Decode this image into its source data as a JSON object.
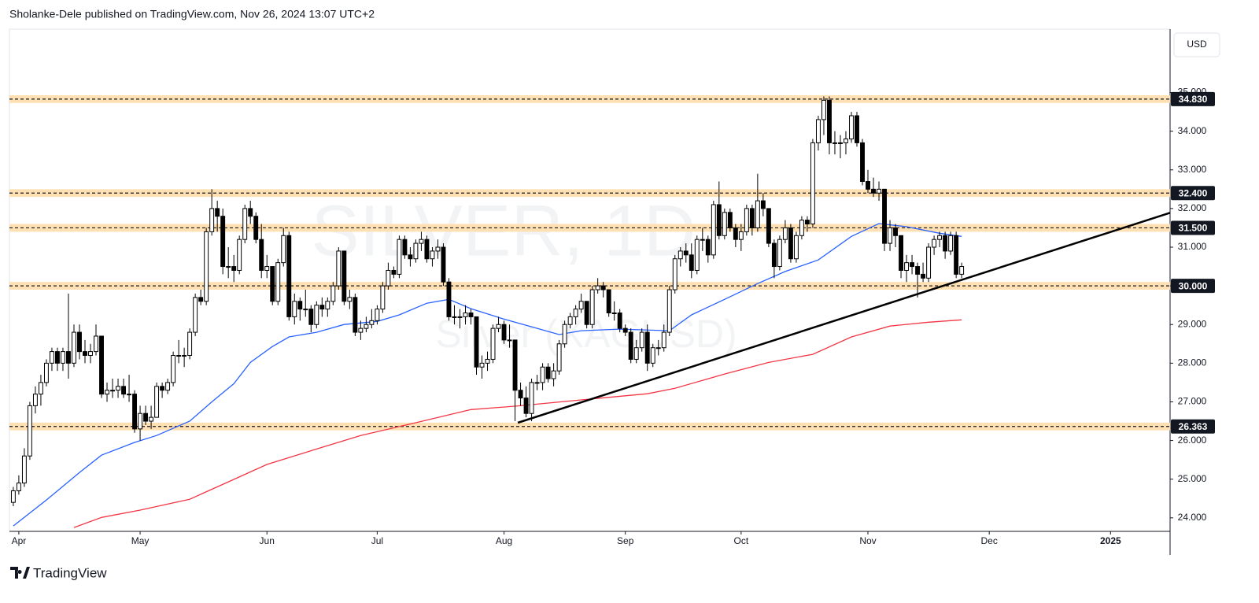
{
  "header": "Sholanke-Dele published on TradingView.com, Nov 26, 2024 13:07 UTC+2",
  "footer": "TradingView",
  "chart_data": {
    "type": "candlestick",
    "currency": "USD",
    "watermark": "SILVER, 1D",
    "watermark_subtitle": "Silver (XAGUSD)",
    "xlim": [
      -0.7,
      209.8
    ],
    "xticks": [
      {
        "value": 1,
        "label": "Apr"
      },
      {
        "value": 23,
        "label": "May"
      },
      {
        "value": 46,
        "label": "Jun"
      },
      {
        "value": 66,
        "label": "Jul"
      },
      {
        "value": 89,
        "label": "Aug"
      },
      {
        "value": 111,
        "label": "Sep"
      },
      {
        "value": 132,
        "label": "Oct"
      },
      {
        "value": 155,
        "label": "Nov"
      },
      {
        "value": 177,
        "label": "Dec"
      },
      {
        "value": 199,
        "label": "2025"
      }
    ],
    "ylim": [
      23.65,
      36.64
    ],
    "yticks": [
      {
        "value": 24,
        "label": "24.000"
      },
      {
        "value": 25,
        "label": "25.000"
      },
      {
        "value": 26,
        "label": "26.000"
      },
      {
        "value": 27,
        "label": "27.000"
      },
      {
        "value": 28,
        "label": "28.000"
      },
      {
        "value": 29,
        "label": "29.000"
      },
      {
        "value": 30,
        "label": "30.000"
      },
      {
        "value": 31,
        "label": "31.000"
      },
      {
        "value": 32,
        "label": "32.000"
      },
      {
        "value": 33,
        "label": "33.000"
      },
      {
        "value": 34,
        "label": "34.000"
      },
      {
        "value": 35,
        "label": "35.000"
      }
    ],
    "up_color": "#ffffff",
    "down_color": "#000000",
    "candles": [
      [
        24.4,
        24.8,
        24.3,
        24.7
      ],
      [
        24.7,
        25.1,
        24.6,
        24.9
      ],
      [
        24.9,
        25.8,
        24.8,
        25.6
      ],
      [
        25.6,
        27.0,
        25.5,
        26.9
      ],
      [
        26.9,
        27.4,
        26.7,
        27.2
      ],
      [
        27.2,
        27.7,
        26.9,
        27.5
      ],
      [
        27.5,
        28.1,
        27.4,
        28.0
      ],
      [
        28.0,
        28.4,
        27.8,
        28.3
      ],
      [
        28.3,
        28.4,
        27.8,
        28.0
      ],
      [
        28.0,
        28.4,
        27.8,
        28.3
      ],
      [
        28.3,
        29.8,
        27.6,
        28.0
      ],
      [
        28.0,
        29.0,
        27.9,
        28.8
      ],
      [
        28.8,
        29.0,
        28.1,
        28.3
      ],
      [
        28.3,
        28.6,
        28.0,
        28.2
      ],
      [
        28.2,
        28.5,
        28.0,
        28.3
      ],
      [
        28.3,
        29.0,
        28.2,
        28.7
      ],
      [
        28.7,
        28.7,
        27.1,
        27.2
      ],
      [
        27.2,
        27.5,
        27.0,
        27.3
      ],
      [
        27.3,
        27.6,
        27.1,
        27.3
      ],
      [
        27.3,
        27.6,
        27.1,
        27.4
      ],
      [
        27.4,
        27.6,
        27.1,
        27.2
      ],
      [
        27.2,
        27.7,
        27.0,
        27.2
      ],
      [
        27.2,
        27.3,
        26.2,
        26.3
      ],
      [
        26.3,
        26.9,
        26.0,
        26.7
      ],
      [
        26.7,
        26.9,
        26.4,
        26.5
      ],
      [
        26.5,
        26.9,
        26.3,
        26.6
      ],
      [
        26.6,
        27.5,
        26.6,
        27.4
      ],
      [
        27.4,
        27.5,
        27.1,
        27.3
      ],
      [
        27.3,
        27.6,
        27.2,
        27.5
      ],
      [
        27.5,
        28.3,
        27.4,
        28.2
      ],
      [
        28.2,
        28.6,
        28.0,
        28.2
      ],
      [
        28.2,
        28.4,
        27.9,
        28.2
      ],
      [
        28.2,
        28.9,
        28.1,
        28.8
      ],
      [
        28.8,
        29.8,
        28.7,
        29.7
      ],
      [
        29.7,
        29.9,
        29.5,
        29.6
      ],
      [
        29.6,
        31.5,
        29.5,
        31.4
      ],
      [
        31.4,
        32.5,
        31.3,
        32.0
      ],
      [
        32.0,
        32.2,
        31.4,
        31.8
      ],
      [
        31.8,
        32.0,
        30.3,
        30.5
      ],
      [
        30.5,
        31.0,
        30.2,
        30.5
      ],
      [
        30.5,
        30.8,
        30.1,
        30.4
      ],
      [
        30.4,
        31.3,
        30.3,
        31.2
      ],
      [
        31.2,
        32.1,
        31.1,
        32.0
      ],
      [
        32.0,
        32.2,
        31.6,
        31.8
      ],
      [
        31.8,
        31.9,
        31.1,
        31.2
      ],
      [
        31.2,
        31.6,
        30.2,
        30.4
      ],
      [
        30.4,
        30.8,
        30.2,
        30.5
      ],
      [
        30.5,
        30.5,
        29.5,
        29.6
      ],
      [
        29.6,
        30.7,
        29.5,
        30.6
      ],
      [
        30.6,
        31.5,
        30.5,
        31.3
      ],
      [
        31.3,
        31.4,
        29.1,
        29.2
      ],
      [
        29.2,
        29.8,
        29.0,
        29.6
      ],
      [
        29.6,
        29.7,
        29.1,
        29.4
      ],
      [
        29.4,
        29.9,
        29.2,
        29.4
      ],
      [
        29.4,
        29.5,
        28.8,
        29.0
      ],
      [
        29.0,
        29.6,
        28.9,
        29.5
      ],
      [
        29.5,
        29.7,
        29.2,
        29.4
      ],
      [
        29.4,
        29.7,
        29.2,
        29.6
      ],
      [
        29.6,
        30.1,
        29.5,
        30.0
      ],
      [
        30.0,
        31.0,
        29.9,
        30.9
      ],
      [
        30.9,
        30.9,
        29.5,
        29.6
      ],
      [
        29.6,
        29.9,
        29.4,
        29.7
      ],
      [
        29.7,
        29.8,
        28.7,
        28.8
      ],
      [
        28.8,
        29.1,
        28.6,
        28.9
      ],
      [
        28.9,
        29.2,
        28.8,
        29.0
      ],
      [
        29.0,
        29.4,
        28.9,
        29.1
      ],
      [
        29.1,
        29.5,
        29.0,
        29.4
      ],
      [
        29.4,
        30.1,
        29.3,
        30.0
      ],
      [
        30.0,
        30.6,
        29.9,
        30.4
      ],
      [
        30.4,
        30.5,
        30.2,
        30.3
      ],
      [
        30.3,
        31.3,
        30.2,
        31.2
      ],
      [
        31.2,
        31.3,
        30.7,
        30.8
      ],
      [
        30.8,
        31.0,
        30.5,
        30.7
      ],
      [
        30.7,
        31.2,
        30.6,
        31.1
      ],
      [
        31.1,
        31.4,
        30.9,
        31.2
      ],
      [
        31.2,
        31.3,
        30.6,
        30.7
      ],
      [
        30.7,
        31.0,
        30.5,
        30.9
      ],
      [
        30.9,
        31.2,
        30.7,
        31.0
      ],
      [
        31.0,
        31.1,
        30.0,
        30.1
      ],
      [
        30.1,
        30.2,
        29.1,
        29.2
      ],
      [
        29.2,
        29.5,
        29.0,
        29.2
      ],
      [
        29.2,
        29.4,
        28.9,
        29.2
      ],
      [
        29.2,
        29.5,
        29.0,
        29.3
      ],
      [
        29.3,
        29.4,
        29.0,
        29.2
      ],
      [
        29.2,
        29.2,
        27.7,
        27.9
      ],
      [
        27.9,
        28.2,
        27.6,
        28.0
      ],
      [
        28.0,
        28.3,
        27.8,
        28.1
      ],
      [
        28.1,
        29.0,
        28.0,
        28.9
      ],
      [
        28.9,
        29.2,
        28.8,
        29.0
      ],
      [
        29.0,
        29.1,
        28.5,
        28.6
      ],
      [
        28.6,
        29.0,
        28.4,
        28.6
      ],
      [
        28.6,
        28.6,
        26.5,
        27.3
      ],
      [
        27.3,
        27.5,
        26.9,
        27.1
      ],
      [
        27.1,
        27.4,
        26.6,
        26.7
      ],
      [
        26.7,
        27.6,
        26.5,
        27.5
      ],
      [
        27.5,
        27.7,
        27.3,
        27.5
      ],
      [
        27.5,
        28.0,
        27.3,
        27.9
      ],
      [
        27.9,
        28.0,
        27.5,
        27.6
      ],
      [
        27.6,
        28.0,
        27.4,
        27.8
      ],
      [
        27.8,
        28.6,
        27.7,
        28.5
      ],
      [
        28.5,
        29.1,
        28.4,
        29.0
      ],
      [
        29.0,
        29.3,
        28.9,
        29.2
      ],
      [
        29.2,
        29.5,
        29.0,
        29.4
      ],
      [
        29.4,
        29.8,
        29.3,
        29.6
      ],
      [
        29.6,
        29.6,
        28.9,
        29.0
      ],
      [
        29.0,
        30.0,
        28.9,
        29.9
      ],
      [
        29.9,
        30.2,
        29.8,
        30.0
      ],
      [
        30.0,
        30.1,
        29.7,
        29.9
      ],
      [
        29.9,
        29.9,
        29.2,
        29.3
      ],
      [
        29.3,
        29.6,
        29.1,
        29.3
      ],
      [
        29.3,
        29.4,
        28.8,
        28.9
      ],
      [
        28.9,
        29.0,
        28.7,
        28.8
      ],
      [
        28.8,
        28.9,
        28.0,
        28.1
      ],
      [
        28.1,
        28.6,
        28.0,
        28.4
      ],
      [
        28.4,
        28.9,
        28.3,
        28.8
      ],
      [
        28.8,
        29.0,
        27.8,
        28.0
      ],
      [
        28.0,
        28.5,
        27.9,
        28.4
      ],
      [
        28.4,
        28.6,
        28.2,
        28.4
      ],
      [
        28.4,
        29.0,
        28.3,
        28.8
      ],
      [
        28.8,
        30.0,
        28.7,
        29.9
      ],
      [
        29.9,
        30.8,
        29.8,
        30.7
      ],
      [
        30.7,
        31.0,
        30.5,
        30.9
      ],
      [
        30.9,
        31.1,
        30.6,
        30.8
      ],
      [
        30.8,
        31.1,
        30.2,
        30.4
      ],
      [
        30.4,
        31.3,
        30.3,
        31.2
      ],
      [
        31.2,
        31.5,
        30.9,
        31.2
      ],
      [
        31.2,
        31.3,
        30.6,
        30.8
      ],
      [
        30.8,
        32.2,
        30.7,
        32.1
      ],
      [
        32.1,
        32.7,
        31.2,
        31.3
      ],
      [
        31.3,
        32.0,
        31.2,
        31.9
      ],
      [
        31.9,
        32.0,
        31.4,
        31.5
      ],
      [
        31.5,
        31.6,
        31.0,
        31.2
      ],
      [
        31.2,
        31.6,
        30.9,
        31.4
      ],
      [
        31.4,
        32.1,
        31.3,
        32.0
      ],
      [
        32.0,
        32.1,
        31.3,
        31.5
      ],
      [
        31.5,
        32.9,
        31.4,
        32.2
      ],
      [
        32.2,
        32.4,
        31.8,
        32.0
      ],
      [
        32.0,
        32.0,
        31.0,
        31.1
      ],
      [
        31.1,
        31.2,
        30.2,
        30.5
      ],
      [
        30.5,
        31.3,
        30.4,
        31.2
      ],
      [
        31.2,
        31.7,
        31.1,
        31.5
      ],
      [
        31.5,
        31.6,
        30.6,
        30.7
      ],
      [
        30.7,
        31.4,
        30.6,
        31.3
      ],
      [
        31.3,
        31.8,
        31.2,
        31.7
      ],
      [
        31.7,
        31.8,
        31.4,
        31.6
      ],
      [
        31.6,
        33.8,
        31.5,
        33.7
      ],
      [
        33.7,
        34.4,
        33.5,
        34.3
      ],
      [
        34.3,
        34.9,
        33.9,
        34.8
      ],
      [
        34.8,
        34.9,
        33.4,
        33.7
      ],
      [
        33.7,
        34.0,
        33.4,
        33.7
      ],
      [
        33.7,
        33.9,
        33.3,
        33.7
      ],
      [
        33.7,
        34.0,
        33.4,
        33.8
      ],
      [
        33.8,
        34.5,
        33.7,
        34.4
      ],
      [
        34.4,
        34.5,
        33.6,
        33.7
      ],
      [
        33.7,
        33.8,
        32.6,
        32.7
      ],
      [
        32.7,
        33.0,
        32.4,
        32.5
      ],
      [
        32.5,
        32.8,
        32.3,
        32.4
      ],
      [
        32.4,
        32.7,
        32.2,
        32.5
      ],
      [
        32.5,
        32.5,
        30.9,
        31.1
      ],
      [
        31.1,
        31.7,
        30.9,
        31.5
      ],
      [
        31.5,
        31.6,
        31.0,
        31.3
      ],
      [
        31.3,
        31.3,
        30.2,
        30.4
      ],
      [
        30.4,
        30.8,
        30.1,
        30.6
      ],
      [
        30.6,
        30.8,
        30.3,
        30.5
      ],
      [
        30.5,
        30.6,
        29.7,
        30.3
      ],
      [
        30.3,
        30.6,
        30.1,
        30.2
      ],
      [
        30.2,
        31.1,
        30.1,
        31.0
      ],
      [
        31.0,
        31.3,
        30.8,
        31.2
      ],
      [
        31.2,
        31.4,
        31.0,
        31.3
      ],
      [
        31.3,
        31.4,
        30.7,
        30.9
      ],
      [
        30.9,
        31.4,
        30.8,
        31.3
      ],
      [
        31.3,
        31.4,
        30.2,
        30.3
      ],
      [
        30.3,
        30.6,
        30.2,
        30.5
      ]
    ],
    "series": [
      {
        "color": "#2962ff",
        "x": [
          0,
          6,
          12,
          16,
          22,
          26,
          32,
          36,
          40,
          43,
          47,
          50,
          55,
          60,
          66,
          70,
          75,
          79,
          83,
          89,
          95,
          99,
          103,
          110,
          119,
          123,
          129,
          135,
          140,
          146,
          152,
          157,
          162,
          168,
          172
        ],
        "values": [
          23.79,
          24.46,
          25.17,
          25.62,
          25.95,
          26.13,
          26.5,
          27.0,
          27.47,
          28.02,
          28.43,
          28.68,
          28.8,
          29.0,
          29.08,
          29.25,
          29.55,
          29.65,
          29.41,
          29.14,
          28.9,
          28.74,
          28.84,
          28.88,
          28.84,
          29.25,
          29.65,
          30.06,
          30.37,
          30.67,
          31.28,
          31.61,
          31.53,
          31.36,
          31.28
        ]
      },
      {
        "color": "#f23645",
        "x": [
          11,
          16,
          23,
          32,
          39,
          46,
          55,
          63,
          73,
          83,
          92,
          103,
          115,
          120,
          129,
          137,
          145,
          152,
          159,
          166,
          172
        ],
        "values": [
          23.75,
          24.01,
          24.2,
          24.48,
          24.93,
          25.38,
          25.78,
          26.13,
          26.46,
          26.8,
          26.9,
          27.05,
          27.21,
          27.35,
          27.72,
          28.02,
          28.23,
          28.68,
          28.96,
          29.06,
          29.12
        ]
      }
    ],
    "trendline": {
      "color": "#000000",
      "x": [
        91.5,
        209.8
      ],
      "values": [
        26.46,
        31.89
      ]
    },
    "levels": [
      {
        "value": 34.83,
        "label": "34.830"
      },
      {
        "value": 32.4,
        "label": "32.400"
      },
      {
        "value": 31.5,
        "label": "31.500"
      },
      {
        "value": 30.0,
        "label": "30.000"
      },
      {
        "value": 26.363,
        "label": "26.363"
      }
    ],
    "level_color": "#ffe0b2"
  }
}
